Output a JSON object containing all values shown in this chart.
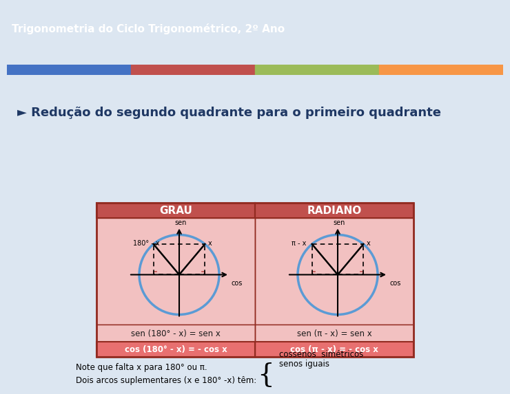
{
  "title_bar_color": "#1a3a5c",
  "title_text": "Trigonometria do Ciclo Trigonométrico, 2º Ano",
  "title_color": "#ffffff",
  "stripe_colors": [
    "#4472c4",
    "#c0504d",
    "#9bbb59",
    "#f79646"
  ],
  "bg_color": "#dce6f1",
  "heading_text": "► Redução do segundo quadrante para o primeiro quadrante",
  "heading_color": "#1f3864",
  "table_header_color": "#c0504d",
  "table_header_text_color": "#ffffff",
  "table_row1_color": "#f2c1c1",
  "table_row2_color": "#e87070",
  "table_border_color": "#922b21",
  "col1_header": "GRAU",
  "col2_header": "RADIANO",
  "formula1_grau": "sen (180° - x) = sen x",
  "formula1_rad": "sen (π - x) = sen x",
  "formula2_grau": "cos (180° - x) = - cos x",
  "formula2_rad": "cos (π - x) = - cos x",
  "note_text": "Note que falta x para 180° ou π.\nDois arcos suplementares (x e 180° -x) têm:",
  "result1": "senos iguais",
  "result2": "cossenos  simétricos",
  "circle_color": "#5b9bd5",
  "axis_color": "#000000",
  "triangle_color": "#000000",
  "dashed_color": "#222222",
  "right_angle_color": "#c0504d"
}
